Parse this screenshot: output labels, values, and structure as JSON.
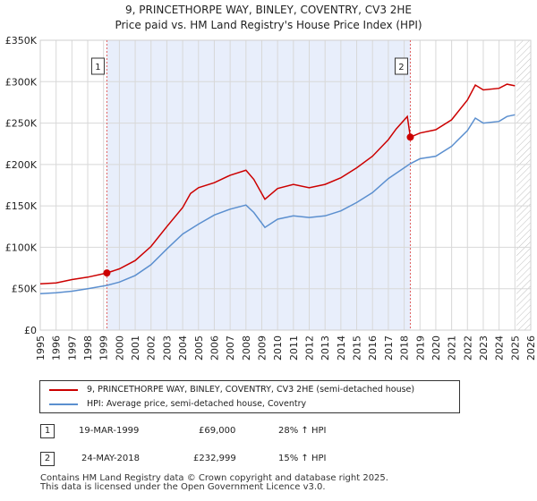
{
  "chart_data": {
    "type": "line",
    "title": "9, PRINCETHORPE WAY, BINLEY, COVENTRY, CV3 2HE",
    "subtitle": "Price paid vs. HM Land Registry's House Price Index (HPI)",
    "xlim": [
      1995,
      2026
    ],
    "ylim": [
      0,
      350000
    ],
    "y_ticks": [
      0,
      50000,
      100000,
      150000,
      200000,
      250000,
      300000,
      350000
    ],
    "y_tick_labels": [
      "£0",
      "£50K",
      "£100K",
      "£150K",
      "£200K",
      "£250K",
      "£300K",
      "£350K"
    ],
    "x_ticks": [
      1995,
      1996,
      1997,
      1998,
      1999,
      2000,
      2001,
      2002,
      2003,
      2004,
      2005,
      2006,
      2007,
      2008,
      2009,
      2010,
      2011,
      2012,
      2013,
      2014,
      2015,
      2016,
      2017,
      2018,
      2019,
      2020,
      2021,
      2022,
      2023,
      2024,
      2025,
      2026
    ],
    "ownership_shade": [
      1999.21,
      2018.39
    ],
    "future_hatch_start": 2025.1,
    "colors": {
      "property": "#cc0000",
      "hpi": "#5b8fcf",
      "shade": "#e8eefb",
      "marker_line": "#e06060"
    },
    "series": [
      {
        "name": "9, PRINCETHORPE WAY, BINLEY, COVENTRY, CV3 2HE (semi-detached house)",
        "color": "#cc0000",
        "points": [
          [
            1995.0,
            56000
          ],
          [
            1996.0,
            57000
          ],
          [
            1997.0,
            61000
          ],
          [
            1998.0,
            64000
          ],
          [
            1999.21,
            69000
          ],
          [
            2000.0,
            74000
          ],
          [
            2001.0,
            84000
          ],
          [
            2002.0,
            101000
          ],
          [
            2003.0,
            125000
          ],
          [
            2004.0,
            148000
          ],
          [
            2004.5,
            165000
          ],
          [
            2005.0,
            172000
          ],
          [
            2006.0,
            178000
          ],
          [
            2007.0,
            187000
          ],
          [
            2008.0,
            193000
          ],
          [
            2008.5,
            182000
          ],
          [
            2009.2,
            158000
          ],
          [
            2010.0,
            171000
          ],
          [
            2011.0,
            176000
          ],
          [
            2012.0,
            172000
          ],
          [
            2013.0,
            176000
          ],
          [
            2014.0,
            184000
          ],
          [
            2015.0,
            196000
          ],
          [
            2016.0,
            210000
          ],
          [
            2017.0,
            230000
          ],
          [
            2017.5,
            243000
          ],
          [
            2018.2,
            258000
          ],
          [
            2018.39,
            232999
          ],
          [
            2019.0,
            238000
          ],
          [
            2020.0,
            242000
          ],
          [
            2021.0,
            254000
          ],
          [
            2022.0,
            278000
          ],
          [
            2022.5,
            296000
          ],
          [
            2023.0,
            290000
          ],
          [
            2024.0,
            292000
          ],
          [
            2024.5,
            297000
          ],
          [
            2025.0,
            295000
          ]
        ]
      },
      {
        "name": "HPI: Average price, semi-detached house, Coventry",
        "color": "#5b8fcf",
        "points": [
          [
            1995.0,
            44000
          ],
          [
            1996.0,
            45000
          ],
          [
            1997.0,
            47000
          ],
          [
            1998.0,
            50000
          ],
          [
            1999.21,
            54000
          ],
          [
            2000.0,
            58000
          ],
          [
            2001.0,
            66000
          ],
          [
            2002.0,
            79000
          ],
          [
            2003.0,
            98000
          ],
          [
            2004.0,
            116000
          ],
          [
            2005.0,
            128000
          ],
          [
            2006.0,
            139000
          ],
          [
            2007.0,
            146000
          ],
          [
            2008.0,
            151000
          ],
          [
            2008.5,
            142000
          ],
          [
            2009.2,
            124000
          ],
          [
            2010.0,
            134000
          ],
          [
            2011.0,
            138000
          ],
          [
            2012.0,
            136000
          ],
          [
            2013.0,
            138000
          ],
          [
            2014.0,
            144000
          ],
          [
            2015.0,
            154000
          ],
          [
            2016.0,
            166000
          ],
          [
            2017.0,
            183000
          ],
          [
            2018.39,
            201000
          ],
          [
            2019.0,
            207000
          ],
          [
            2020.0,
            210000
          ],
          [
            2021.0,
            222000
          ],
          [
            2022.0,
            241000
          ],
          [
            2022.5,
            256000
          ],
          [
            2023.0,
            250000
          ],
          [
            2024.0,
            252000
          ],
          [
            2024.5,
            258000
          ],
          [
            2025.0,
            260000
          ]
        ]
      }
    ],
    "sales": [
      {
        "id": "1",
        "x": 1999.21,
        "y": 69000,
        "date": "19-MAR-1999",
        "price": "£69,000",
        "hpi": "28% ↑ HPI"
      },
      {
        "id": "2",
        "x": 2018.39,
        "y": 232999,
        "date": "24-MAY-2018",
        "price": "£232,999",
        "hpi": "15% ↑ HPI"
      }
    ]
  },
  "legend": {
    "property_label": "9, PRINCETHORPE WAY, BINLEY, COVENTRY, CV3 2HE (semi-detached house)",
    "hpi_label": "HPI: Average price, semi-detached house, Coventry"
  },
  "footer": {
    "line1": "Contains HM Land Registry data © Crown copyright and database right 2025.",
    "line2": "This data is licensed under the Open Government Licence v3.0."
  }
}
